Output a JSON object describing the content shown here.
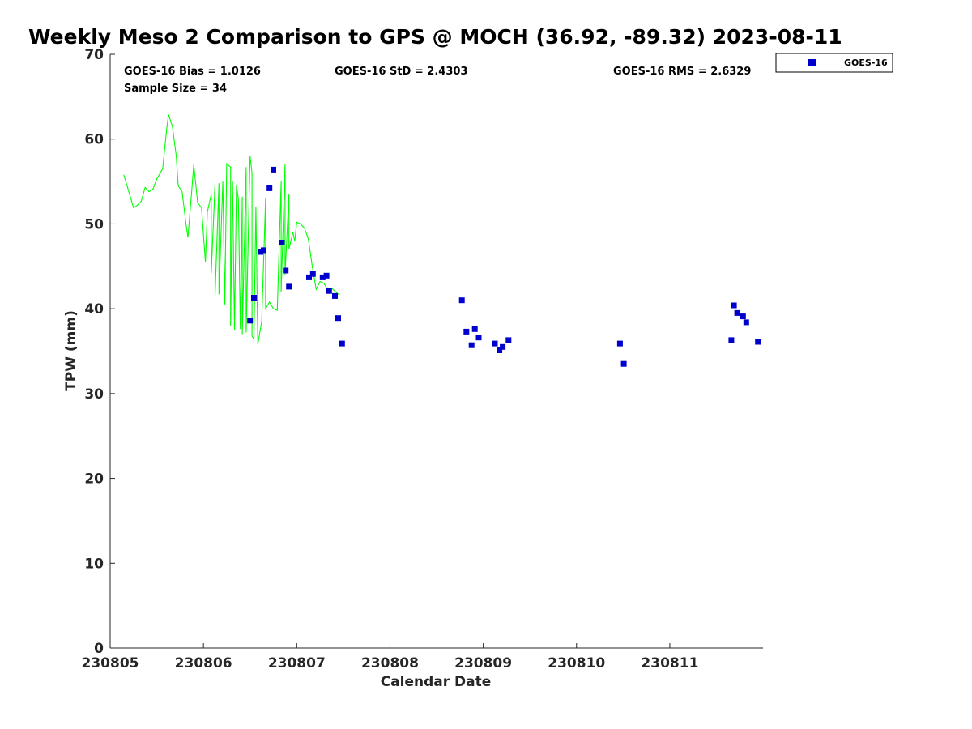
{
  "chart_data": {
    "type": "scatter",
    "title": "Weekly Meso 2 Comparison to GPS @ MOCH (36.92, -89.32) 2023-08-11",
    "xlabel": "Calendar Date",
    "ylabel": "TPW (mm)",
    "xlim": [
      "2023-08-05 00:00",
      "2023-08-11 23:59"
    ],
    "ylim": [
      0,
      70
    ],
    "x_tick_labels": [
      "230805",
      "230806",
      "230807",
      "230808",
      "230809",
      "230810",
      "230811"
    ],
    "y_tick_labels": [
      "0",
      "10",
      "20",
      "30",
      "40",
      "50",
      "60",
      "70"
    ],
    "grid": false,
    "legend_position": "top-right outside",
    "stats": {
      "bias": "GOES-16 Bias = 1.0126",
      "std": "GOES-16 StD = 2.4303",
      "rms": "GOES-16 RMS = 2.6329",
      "sample_size": "Sample Size = 34"
    },
    "colors": {
      "gps_line": "#00ff00",
      "goes16": "#0000cc"
    },
    "series": [
      {
        "name": "GOES-16",
        "marker": "square",
        "points": [
          [
            "2023-08-06 12:00",
            38.6
          ],
          [
            "2023-08-06 13:00",
            41.3
          ],
          [
            "2023-08-06 14:40",
            46.7
          ],
          [
            "2023-08-06 15:30",
            46.9
          ],
          [
            "2023-08-06 17:00",
            54.2
          ],
          [
            "2023-08-06 18:00",
            56.4
          ],
          [
            "2023-08-06 20:10",
            47.8
          ],
          [
            "2023-08-06 21:10",
            44.5
          ],
          [
            "2023-08-06 22:00",
            42.6
          ],
          [
            "2023-08-07 03:10",
            43.7
          ],
          [
            "2023-08-07 04:10",
            44.1
          ],
          [
            "2023-08-07 06:40",
            43.7
          ],
          [
            "2023-08-07 07:40",
            43.9
          ],
          [
            "2023-08-07 08:20",
            42.1
          ],
          [
            "2023-08-07 09:50",
            41.5
          ],
          [
            "2023-08-07 10:40",
            38.9
          ],
          [
            "2023-08-07 11:40",
            35.9
          ],
          [
            "2023-08-08 18:30",
            41.0
          ],
          [
            "2023-08-08 19:40",
            37.3
          ],
          [
            "2023-08-08 21:00",
            35.7
          ],
          [
            "2023-08-08 21:50",
            37.6
          ],
          [
            "2023-08-08 22:50",
            36.6
          ],
          [
            "2023-08-09 03:00",
            35.9
          ],
          [
            "2023-08-09 04:10",
            35.1
          ],
          [
            "2023-08-09 05:00",
            35.5
          ],
          [
            "2023-08-09 06:30",
            36.3
          ],
          [
            "2023-08-10 11:10",
            35.9
          ],
          [
            "2023-08-10 12:10",
            33.5
          ],
          [
            "2023-08-11 15:50",
            36.3
          ],
          [
            "2023-08-11 16:30",
            40.4
          ],
          [
            "2023-08-11 17:20",
            39.5
          ],
          [
            "2023-08-11 18:50",
            39.1
          ],
          [
            "2023-08-11 19:40",
            38.4
          ],
          [
            "2023-08-11 22:40",
            36.1
          ]
        ]
      },
      {
        "marker": "line",
        "points": [
          [
            "2023-08-05 03:30",
            55.8
          ],
          [
            "2023-08-05 05:00",
            53.5
          ],
          [
            "2023-08-05 06:00",
            51.9
          ],
          [
            "2023-08-05 07:00",
            52.2
          ],
          [
            "2023-08-05 08:00",
            52.7
          ],
          [
            "2023-08-05 09:00",
            54.3
          ],
          [
            "2023-08-05 10:00",
            53.8
          ],
          [
            "2023-08-05 11:00",
            54.1
          ],
          [
            "2023-08-05 12:00",
            55.3
          ],
          [
            "2023-08-05 13:30",
            56.5
          ],
          [
            "2023-08-05 14:30",
            61.0
          ],
          [
            "2023-08-05 15:00",
            62.9
          ],
          [
            "2023-08-05 16:00",
            61.5
          ],
          [
            "2023-08-05 17:00",
            58.0
          ],
          [
            "2023-08-05 17:30",
            54.5
          ],
          [
            "2023-08-05 18:30",
            53.8
          ],
          [
            "2023-08-05 19:30",
            50.0
          ],
          [
            "2023-08-05 20:00",
            48.4
          ],
          [
            "2023-08-05 21:00",
            54.0
          ],
          [
            "2023-08-05 21:30",
            57.0
          ],
          [
            "2023-08-05 22:30",
            52.5
          ],
          [
            "2023-08-05 23:30",
            51.9
          ],
          [
            "2023-08-06 01:00",
            51.4
          ],
          [
            "2023-08-06 02:00",
            53.5
          ],
          [
            "2023-08-06 03:00",
            54.8
          ],
          [
            "2023-08-06 04:00",
            54.8
          ],
          [
            "2023-08-06 05:00",
            55.0
          ],
          [
            "2023-08-06 06:00",
            57.1
          ],
          [
            "2023-08-06 07:00",
            56.7
          ],
          [
            "2023-08-06 07:30",
            55.0
          ],
          [
            "2023-08-06 08:30",
            54.6
          ],
          [
            "2023-08-06 09:00",
            52.9
          ],
          [
            "2023-08-06 10:00",
            53.2
          ],
          [
            "2023-08-06 11:00",
            56.7
          ],
          [
            "2023-08-06 12:00",
            58.0
          ],
          [
            "2023-08-06 12:30",
            56.0
          ],
          [
            "2023-08-06 13:30",
            52.0
          ],
          [
            "2023-08-06 16:00",
            53.0
          ],
          [
            "2023-08-06 20:00",
            55.0
          ],
          [
            "2023-08-06 21:00",
            57.0
          ],
          [
            "2023-08-06 22:00",
            53.5
          ],
          [
            "2023-08-06 23:30",
            48.0
          ],
          [
            "2023-08-06 00:30",
            45.5
          ],
          [
            "2023-08-06 02:00",
            44.2
          ],
          [
            "2023-08-06 03:00",
            41.5
          ],
          [
            "2023-08-06 04:00",
            41.7
          ],
          [
            "2023-08-06 05:30",
            40.5
          ],
          [
            "2023-08-06 07:00",
            38.0
          ],
          [
            "2023-08-06 08:00",
            37.5
          ],
          [
            "2023-08-06 09:30",
            37.6
          ],
          [
            "2023-08-06 10:00",
            37.0
          ],
          [
            "2023-08-06 11:00",
            37.2
          ],
          [
            "2023-08-06 12:30",
            36.8
          ],
          [
            "2023-08-06 13:00",
            36.4
          ],
          [
            "2023-08-06 14:00",
            35.8
          ],
          [
            "2023-08-06 15:00",
            38.5
          ],
          [
            "2023-08-06 16:00",
            40.0
          ],
          [
            "2023-08-06 17:00",
            40.8
          ],
          [
            "2023-08-06 18:00",
            40.0
          ],
          [
            "2023-08-06 19:00",
            39.8
          ],
          [
            "2023-08-06 20:00",
            42.0
          ],
          [
            "2023-08-06 21:00",
            44.0
          ],
          [
            "2023-08-06 22:00",
            47.0
          ],
          [
            "2023-08-06 23:00",
            49.0
          ],
          [
            "2023-08-07 00:00",
            50.2
          ],
          [
            "2023-08-07 01:00",
            50.0
          ],
          [
            "2023-08-07 02:00",
            49.5
          ],
          [
            "2023-08-07 03:00",
            48.2
          ],
          [
            "2023-08-07 04:00",
            45.0
          ],
          [
            "2023-08-07 05:00",
            42.3
          ],
          [
            "2023-08-07 06:00",
            43.2
          ],
          [
            "2023-08-07 07:00",
            43.0
          ],
          [
            "2023-08-07 08:00",
            42.2
          ],
          [
            "2023-08-07 09:00",
            42.4
          ],
          [
            "2023-08-07 10:00",
            42.0
          ],
          [
            "2023-08-07 11:00",
            41.6
          ]
        ]
      }
    ]
  },
  "legend": {
    "label": "GOES-16"
  }
}
